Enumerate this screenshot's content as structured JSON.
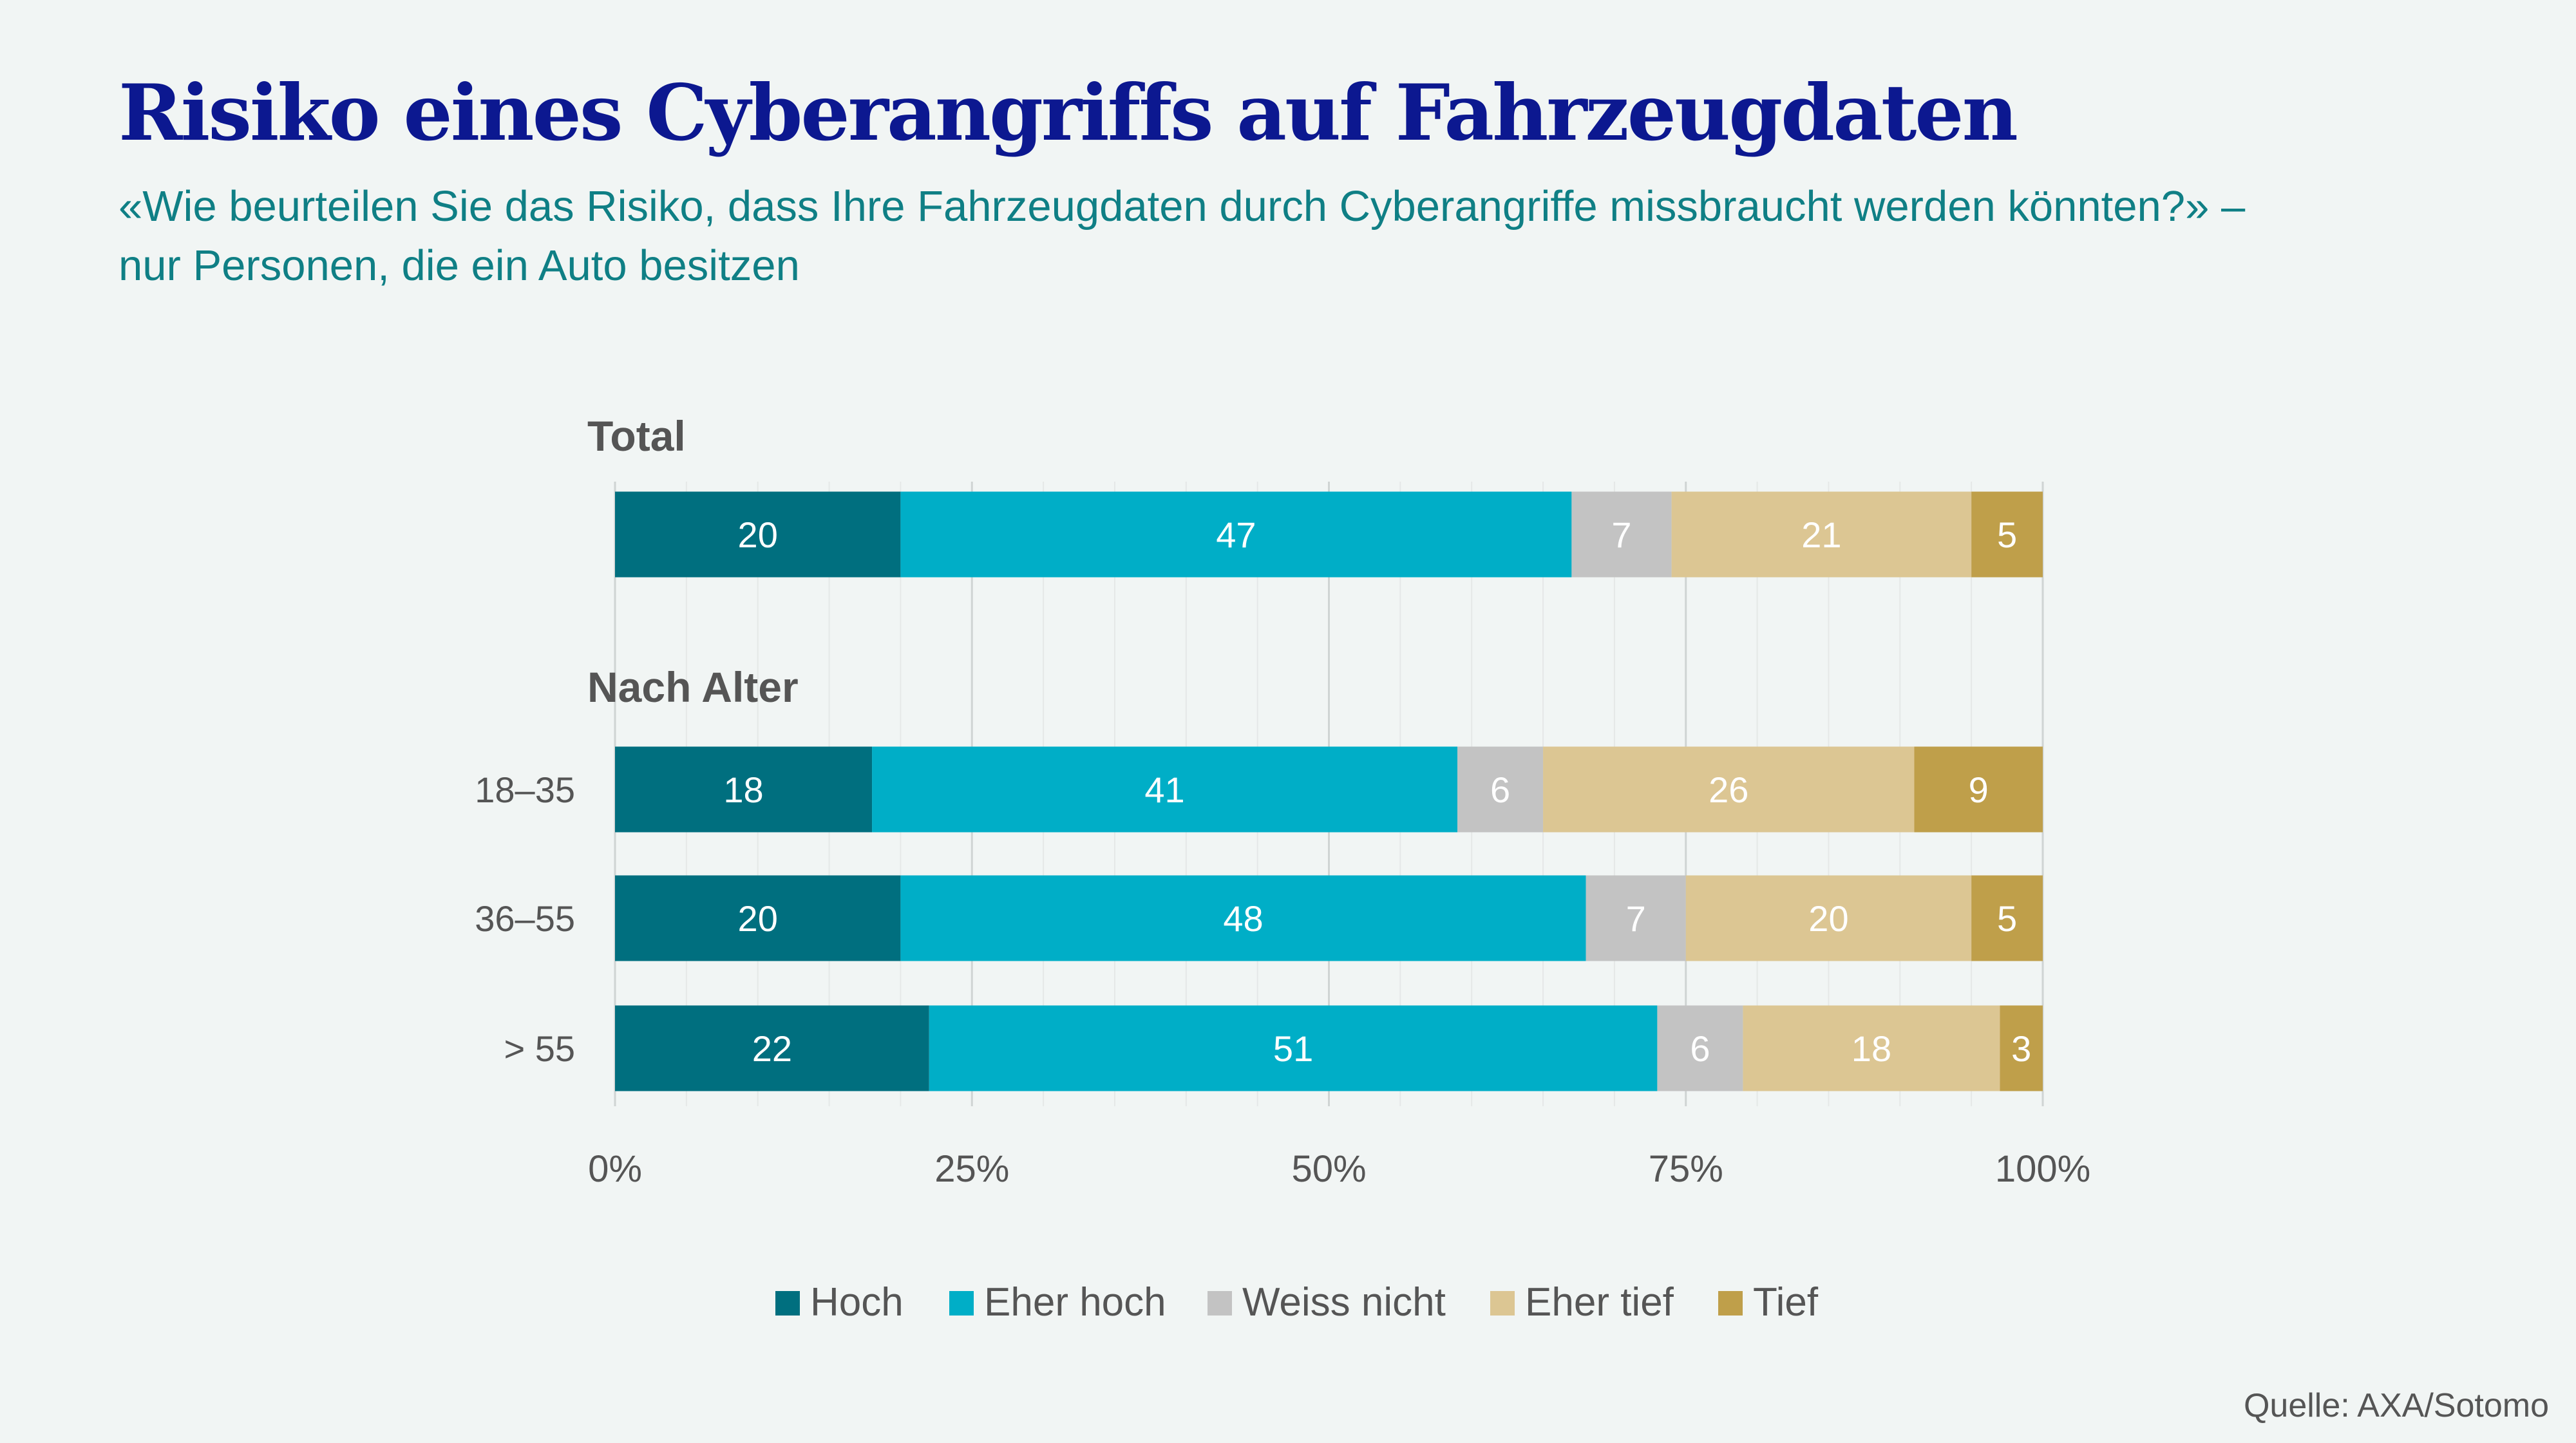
{
  "title": "Risiko eines Cyberangriffs auf Fahrzeugdaten",
  "subtitle_line1": "«Wie beurteilen Sie das Risiko, dass Ihre Fahrzeugdaten durch Cyberangriffe missbraucht werden könnten?» –",
  "subtitle_line2": "nur Personen, die ein Auto besitzen",
  "source": "Quelle: AXA/Sotomo",
  "chart_data": {
    "type": "bar",
    "orientation": "horizontal",
    "stacked": true,
    "xlim": [
      0,
      100
    ],
    "x_ticks": [
      "0%",
      "25%",
      "50%",
      "75%",
      "100%"
    ],
    "grid": true,
    "legend_position": "bottom",
    "series": [
      {
        "name": "Hoch",
        "color": "#006f7f"
      },
      {
        "name": "Eher hoch",
        "color": "#00aec7"
      },
      {
        "name": "Weiss nicht",
        "color": "#c3c3c3"
      },
      {
        "name": "Eher tief",
        "color": "#dcc693"
      },
      {
        "name": "Tief",
        "color": "#bf9f4a"
      }
    ],
    "groups": [
      {
        "title": "Total",
        "rows": [
          {
            "label": "",
            "values": [
              20,
              47,
              7,
              21,
              5
            ]
          }
        ]
      },
      {
        "title": "Nach Alter",
        "rows": [
          {
            "label": "18–35",
            "values": [
              18,
              41,
              6,
              26,
              9
            ]
          },
          {
            "label": "36–55",
            "values": [
              20,
              48,
              7,
              20,
              5
            ]
          },
          {
            "label": "> 55",
            "values": [
              22,
              51,
              6,
              18,
              3
            ]
          }
        ]
      }
    ]
  }
}
